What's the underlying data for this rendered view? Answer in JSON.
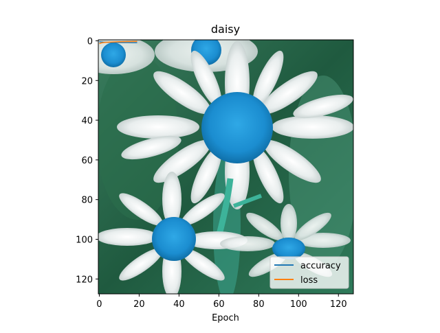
{
  "chart_data": {
    "type": "line",
    "title": "daisy",
    "xlabel": "Epoch",
    "ylabel": "",
    "xlim": [
      -0.5,
      127.5
    ],
    "ylim": [
      127.5,
      -0.5
    ],
    "x_ticks": [
      0,
      20,
      40,
      60,
      80,
      100,
      120
    ],
    "y_ticks": [
      0,
      20,
      40,
      60,
      80,
      100,
      120
    ],
    "background_image": "daisy flower photo (blue-tinted centers) shown as image, extent 128x128",
    "grid": false,
    "legend_position": "lower-right",
    "series": [
      {
        "name": "accuracy",
        "color": "#1f77b4",
        "x": [
          0,
          1,
          2,
          3,
          4,
          5,
          6,
          7,
          8,
          9,
          10,
          11,
          12,
          13,
          14,
          15,
          16,
          17,
          18,
          19
        ],
        "y": [
          0.45,
          0.6,
          0.68,
          0.72,
          0.75,
          0.78,
          0.8,
          0.82,
          0.83,
          0.85,
          0.86,
          0.87,
          0.88,
          0.89,
          0.9,
          0.9,
          0.91,
          0.92,
          0.92,
          0.93
        ]
      },
      {
        "name": "loss",
        "color": "#ff7f0e",
        "x": [
          0,
          1,
          2,
          3,
          4,
          5,
          6,
          7,
          8,
          9,
          10,
          11,
          12,
          13,
          14,
          15,
          16,
          17,
          18,
          19
        ],
        "y": [
          1.4,
          1.05,
          0.9,
          0.8,
          0.72,
          0.66,
          0.61,
          0.57,
          0.53,
          0.5,
          0.47,
          0.45,
          0.42,
          0.4,
          0.38,
          0.36,
          0.35,
          0.33,
          0.32,
          0.3
        ]
      }
    ]
  }
}
